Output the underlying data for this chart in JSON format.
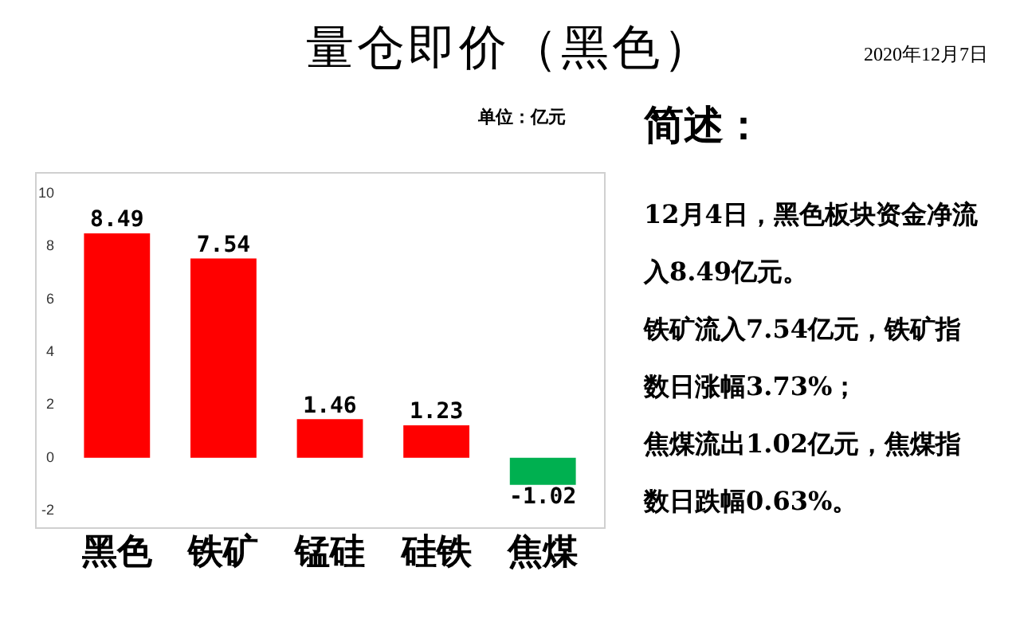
{
  "chart_data": {
    "type": "bar",
    "title": "量仓即价（黑色）",
    "subtitle": "2020年12月7日",
    "categories": [
      "黑色",
      "铁矿",
      "锰硅",
      "硅铁",
      "焦煤"
    ],
    "values": [
      8.49,
      7.54,
      1.46,
      1.23,
      -1.02
    ],
    "colors": [
      "#ff0000",
      "#ff0000",
      "#ff0000",
      "#ff0000",
      "#00b050"
    ],
    "ylim": [
      -2,
      10
    ],
    "yticks": [
      -2,
      0,
      2,
      4,
      6,
      8,
      10
    ],
    "grid": false,
    "legend": false,
    "data_labels": true,
    "annotations": [
      "单位：亿元",
      "简述：",
      "12月4日，黑色板块资金净流入8.49亿元。",
      "铁矿流入7.54亿元，铁矿指数日涨幅3.73%；",
      "焦煤流出1.02亿元，焦煤指数日跌幅0.63%。"
    ]
  }
}
